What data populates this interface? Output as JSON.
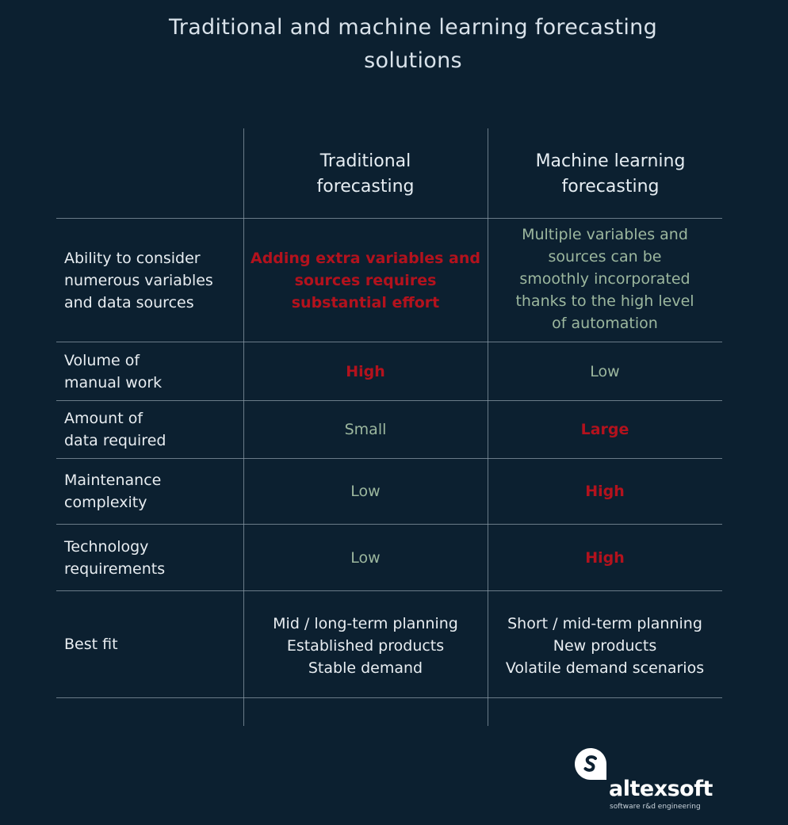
{
  "title": {
    "line1": "Traditional and machine learning forecasting",
    "line2": "solutions"
  },
  "columns": {
    "traditional": [
      "Traditional",
      "forecasting"
    ],
    "ml": [
      "Machine learning",
      "forecasting"
    ]
  },
  "rows": [
    {
      "label": [
        "Ability to consider",
        "numerous variables",
        "and data sources"
      ],
      "traditional": [
        "Adding extra variables and",
        "sources requires",
        "substantial effort"
      ],
      "ml": [
        "Multiple variables and",
        "sources can be",
        "smoothly incorporated",
        "thanks to the high level",
        "of automation"
      ]
    },
    {
      "label": [
        "Volume of",
        "manual work"
      ],
      "traditional": [
        "High"
      ],
      "ml": [
        "Low"
      ]
    },
    {
      "label": [
        "Amount of",
        "data required"
      ],
      "traditional": [
        "Small"
      ],
      "ml": [
        "Large"
      ]
    },
    {
      "label": [
        "Maintenance",
        "complexity"
      ],
      "traditional": [
        "Low"
      ],
      "ml": [
        "High"
      ]
    },
    {
      "label": [
        "Technology",
        "requirements"
      ],
      "traditional": [
        "Low"
      ],
      "ml": [
        "High"
      ]
    },
    {
      "label": [
        "Best fit"
      ],
      "traditional": [
        "Mid / long-term planning",
        "Established products",
        "Stable demand"
      ],
      "ml": [
        "Short / mid-term planning",
        "New products",
        "Volatile demand scenarios"
      ]
    }
  ],
  "colors": {
    "background": "#0c2030",
    "negative": "#b3121d",
    "positive": "#9cb79e"
  },
  "logo": {
    "name": "altexsoft",
    "tagline": "software r&d engineering",
    "icon": "altexsoft-logo-icon"
  }
}
